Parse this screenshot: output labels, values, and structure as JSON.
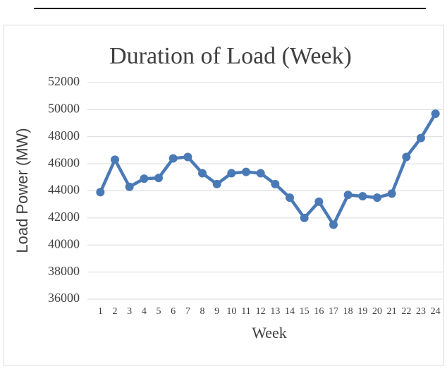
{
  "chart_data": {
    "type": "line",
    "title": "Duration of Load  (Week)",
    "x_label": "Week",
    "y_label": "Load Power (MW)",
    "categories": [
      "1",
      "2",
      "3",
      "4",
      "5",
      "6",
      "7",
      "8",
      "9",
      "10",
      "11",
      "12",
      "13",
      "14",
      "15",
      "16",
      "17",
      "18",
      "19",
      "20",
      "21",
      "22",
      "23",
      "24"
    ],
    "series": [
      {
        "color": "#4a7ab6",
        "values": [
          43900,
          46300,
          44300,
          44900,
          44950,
          46400,
          46500,
          45300,
          44500,
          45300,
          45400,
          45300,
          44500,
          43500,
          42000,
          43200,
          41500,
          43700,
          43600,
          43500,
          43800,
          46500,
          47900,
          49700
        ]
      }
    ],
    "ylim": [
      36000,
      52000
    ],
    "yticks": [
      36000,
      38000,
      40000,
      42000,
      44000,
      46000,
      48000,
      50000,
      52000
    ],
    "grid": true
  }
}
